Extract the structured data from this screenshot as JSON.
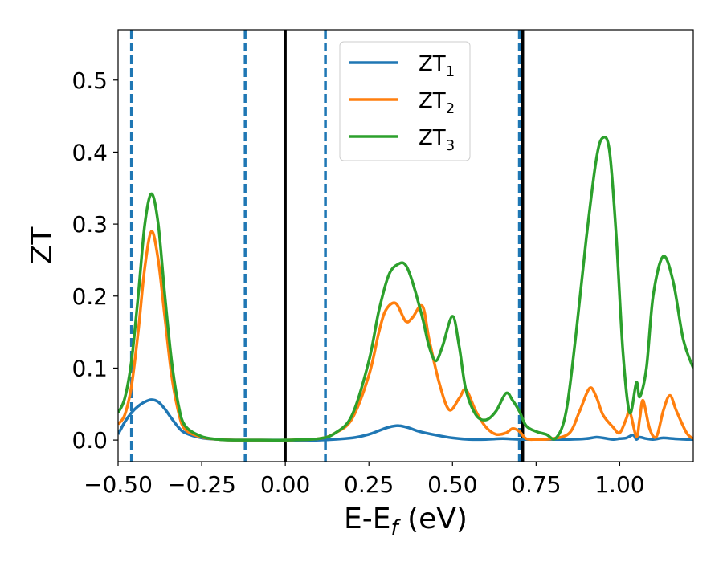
{
  "chart_data": {
    "type": "line",
    "title": "",
    "xlabel": "E-E",
    "xlabel_sub": "f",
    "xlabel_unit": " (eV)",
    "ylabel": "ZT",
    "xlim": [
      -0.5,
      1.22
    ],
    "ylim": [
      -0.03,
      0.57
    ],
    "xticks": [
      -0.5,
      -0.25,
      0.0,
      0.25,
      0.5,
      0.75,
      1.0
    ],
    "xtick_labels": [
      "−0.50",
      "−0.25",
      "0.00",
      "0.25",
      "0.50",
      "0.75",
      "1.00"
    ],
    "yticks": [
      0.0,
      0.1,
      0.2,
      0.3,
      0.4,
      0.5
    ],
    "ytick_labels": [
      "0.0",
      "0.1",
      "0.2",
      "0.3",
      "0.4",
      "0.5"
    ],
    "grid": false,
    "legend_position": "top-center",
    "vlines_dashed": [
      -0.46,
      -0.12,
      0.12,
      0.7
    ],
    "vlines_solid": [
      0.0,
      0.71
    ],
    "series": [
      {
        "name": "ZT",
        "name_sub": "1",
        "color": "#1f77b4",
        "x": [
          -0.5,
          -0.48,
          -0.46,
          -0.44,
          -0.42,
          -0.4,
          -0.38,
          -0.36,
          -0.34,
          -0.32,
          -0.3,
          -0.25,
          -0.2,
          -0.15,
          -0.1,
          0.0,
          0.1,
          0.2,
          0.25,
          0.28,
          0.31,
          0.34,
          0.37,
          0.4,
          0.45,
          0.5,
          0.55,
          0.6,
          0.65,
          0.7,
          0.75,
          0.8,
          0.85,
          0.9,
          0.93,
          0.95,
          0.98,
          1.0,
          1.02,
          1.04,
          1.05,
          1.06,
          1.08,
          1.1,
          1.13,
          1.16,
          1.2,
          1.22
        ],
        "y": [
          0.008,
          0.025,
          0.038,
          0.047,
          0.053,
          0.056,
          0.053,
          0.043,
          0.03,
          0.018,
          0.01,
          0.003,
          0.001,
          0.0,
          0.0,
          0.0,
          0.0,
          0.003,
          0.008,
          0.013,
          0.018,
          0.02,
          0.017,
          0.012,
          0.007,
          0.003,
          0.001,
          0.001,
          0.002,
          0.001,
          0.001,
          0.001,
          0.001,
          0.002,
          0.004,
          0.003,
          0.001,
          0.002,
          0.003,
          0.007,
          0.001,
          0.004,
          0.002,
          0.001,
          0.003,
          0.002,
          0.001,
          0.001
        ]
      },
      {
        "name": "ZT",
        "name_sub": "2",
        "color": "#ff7f0e",
        "x": [
          -0.5,
          -0.48,
          -0.46,
          -0.44,
          -0.42,
          -0.4,
          -0.38,
          -0.36,
          -0.34,
          -0.32,
          -0.3,
          -0.25,
          -0.2,
          -0.15,
          -0.1,
          0.0,
          0.1,
          0.15,
          0.2,
          0.25,
          0.28,
          0.3,
          0.33,
          0.36,
          0.38,
          0.41,
          0.43,
          0.46,
          0.49,
          0.52,
          0.54,
          0.57,
          0.6,
          0.63,
          0.66,
          0.68,
          0.7,
          0.72,
          0.75,
          0.8,
          0.85,
          0.88,
          0.91,
          0.93,
          0.95,
          0.98,
          1.0,
          1.02,
          1.03,
          1.05,
          1.06,
          1.07,
          1.09,
          1.11,
          1.13,
          1.15,
          1.17,
          1.2,
          1.22
        ],
        "y": [
          0.022,
          0.035,
          0.075,
          0.15,
          0.24,
          0.29,
          0.25,
          0.17,
          0.09,
          0.04,
          0.015,
          0.004,
          0.001,
          0.0,
          0.0,
          0.0,
          0.002,
          0.01,
          0.03,
          0.09,
          0.15,
          0.18,
          0.19,
          0.165,
          0.17,
          0.186,
          0.14,
          0.08,
          0.042,
          0.058,
          0.07,
          0.04,
          0.018,
          0.008,
          0.01,
          0.016,
          0.012,
          0.002,
          0.001,
          0.002,
          0.01,
          0.04,
          0.072,
          0.06,
          0.035,
          0.018,
          0.01,
          0.03,
          0.04,
          0.005,
          0.03,
          0.055,
          0.015,
          0.005,
          0.04,
          0.062,
          0.04,
          0.01,
          0.002
        ]
      },
      {
        "name": "ZT",
        "name_sub": "3",
        "color": "#2ca02c",
        "x": [
          -0.5,
          -0.48,
          -0.46,
          -0.44,
          -0.42,
          -0.4,
          -0.38,
          -0.36,
          -0.34,
          -0.32,
          -0.3,
          -0.25,
          -0.2,
          -0.15,
          -0.1,
          0.0,
          0.1,
          0.15,
          0.2,
          0.25,
          0.28,
          0.31,
          0.34,
          0.36,
          0.38,
          0.41,
          0.43,
          0.45,
          0.47,
          0.5,
          0.52,
          0.54,
          0.57,
          0.6,
          0.63,
          0.66,
          0.68,
          0.7,
          0.72,
          0.75,
          0.78,
          0.81,
          0.84,
          0.87,
          0.9,
          0.93,
          0.95,
          0.97,
          0.99,
          1.01,
          1.03,
          1.05,
          1.06,
          1.08,
          1.1,
          1.13,
          1.16,
          1.19,
          1.22
        ],
        "y": [
          0.038,
          0.058,
          0.11,
          0.2,
          0.3,
          0.342,
          0.3,
          0.2,
          0.11,
          0.05,
          0.02,
          0.005,
          0.001,
          0.0,
          0.0,
          0.0,
          0.002,
          0.01,
          0.035,
          0.11,
          0.18,
          0.23,
          0.245,
          0.243,
          0.22,
          0.17,
          0.13,
          0.11,
          0.13,
          0.172,
          0.13,
          0.07,
          0.035,
          0.028,
          0.04,
          0.065,
          0.055,
          0.04,
          0.02,
          0.012,
          0.008,
          0.003,
          0.04,
          0.15,
          0.28,
          0.39,
          0.42,
          0.4,
          0.28,
          0.12,
          0.038,
          0.08,
          0.06,
          0.1,
          0.2,
          0.255,
          0.22,
          0.14,
          0.1
        ]
      }
    ]
  }
}
